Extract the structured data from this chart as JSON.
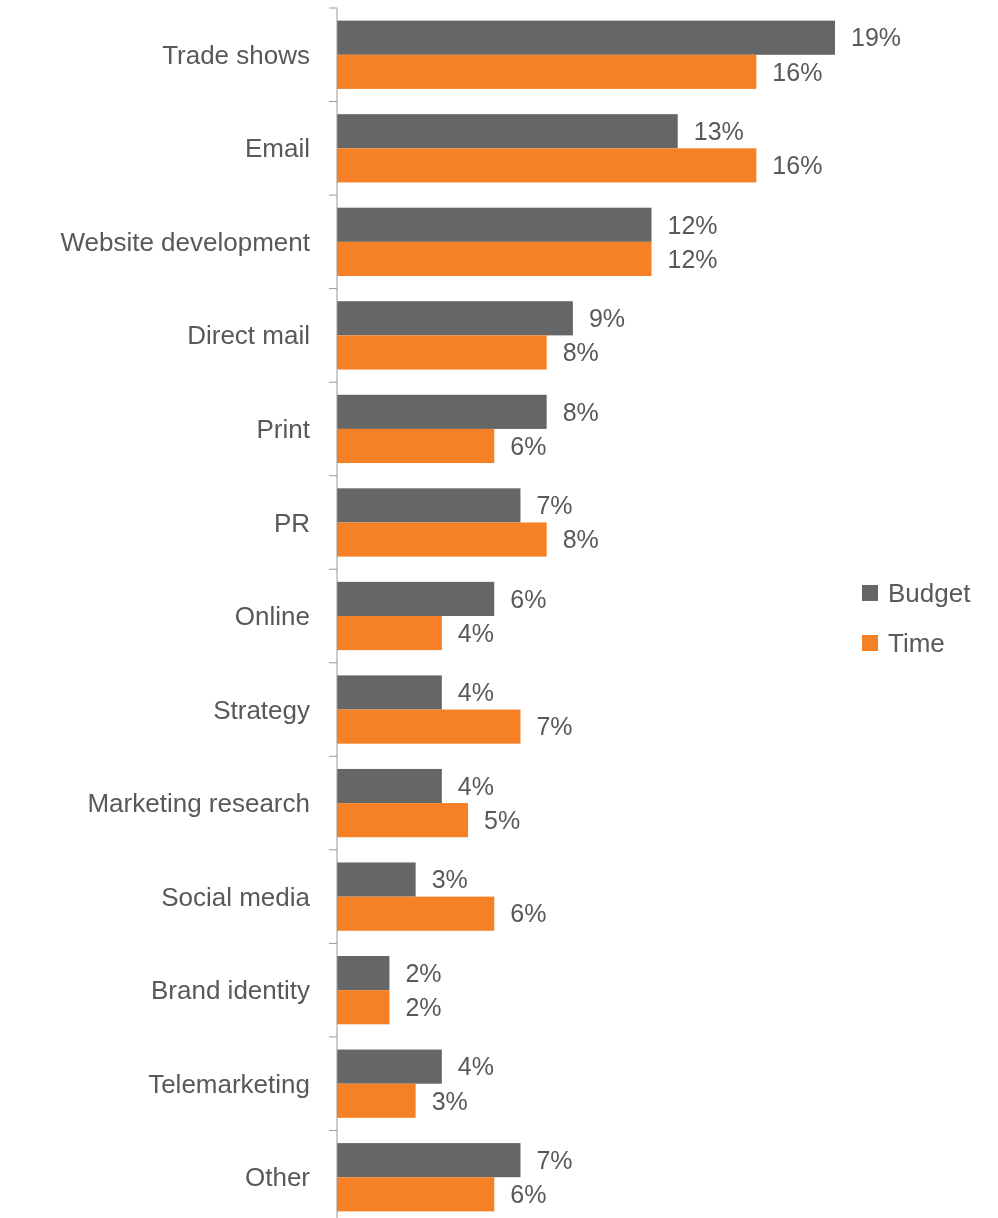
{
  "chart_data": {
    "type": "bar",
    "orientation": "horizontal",
    "categories": [
      "Trade shows",
      "Email",
      "Website development",
      "Direct mail",
      "Print",
      "PR",
      "Online",
      "Strategy",
      "Marketing research",
      "Social media",
      "Brand identity",
      "Telemarketing",
      "Other"
    ],
    "series": [
      {
        "name": "Budget",
        "color": "#666666",
        "values": [
          19,
          13,
          12,
          9,
          8,
          7,
          6,
          4,
          4,
          3,
          2,
          4,
          7
        ],
        "value_labels": [
          "19%",
          "13%",
          "12%",
          "9%",
          "8%",
          "7%",
          "6%",
          "4%",
          "4%",
          "3%",
          "2%",
          "4%",
          "7%"
        ]
      },
      {
        "name": "Time",
        "color": "#f58025",
        "values": [
          16,
          16,
          12,
          8,
          6,
          8,
          4,
          7,
          5,
          6,
          2,
          3,
          6
        ],
        "value_labels": [
          "16%",
          "16%",
          "12%",
          "8%",
          "6%",
          "8%",
          "4%",
          "7%",
          "5%",
          "6%",
          "2%",
          "3%",
          "6%"
        ]
      }
    ],
    "legend": "right"
  }
}
